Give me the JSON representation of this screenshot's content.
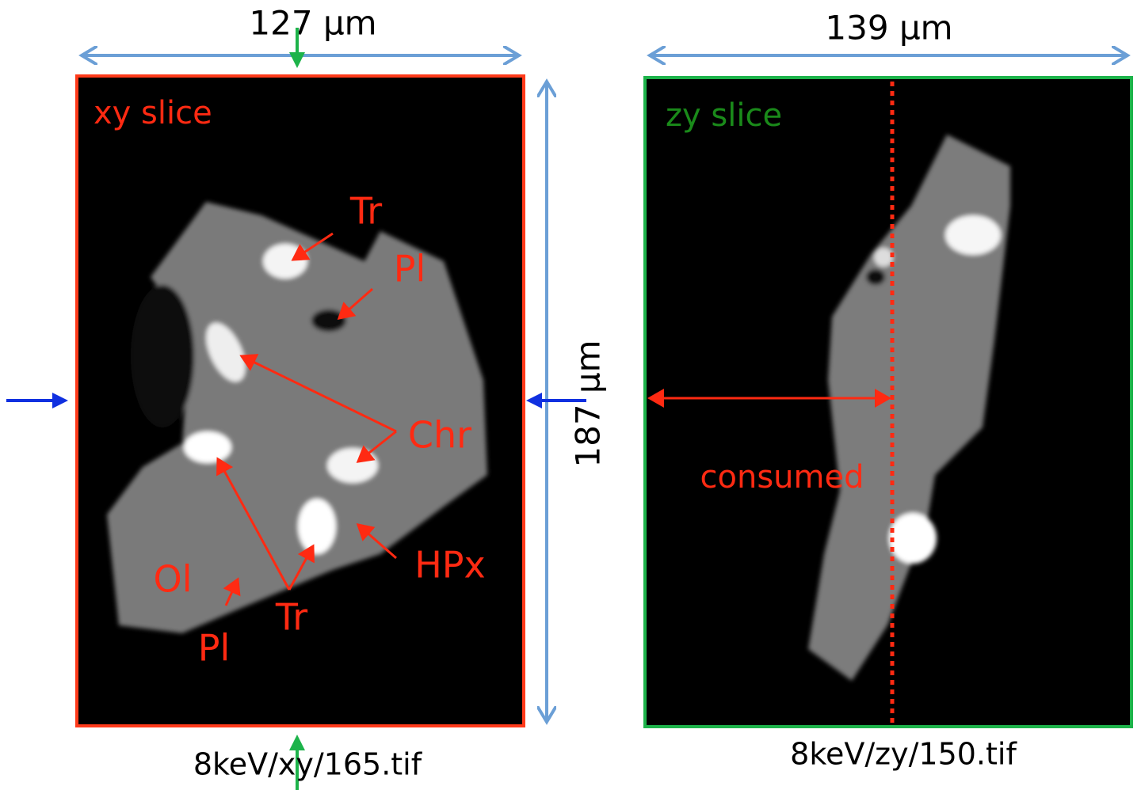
{
  "panels": [
    {
      "width_label": "127 μm",
      "height_label": "187 μm",
      "slice_label": "xy slice",
      "annotations": [
        "Tr",
        "Pl",
        "Chr",
        "Ol",
        "Pl",
        "Tr",
        "HPx"
      ],
      "file": "8keV/xy/165.tif"
    },
    {
      "width_label": "139 μm",
      "slice_label": "zy slice",
      "annotations": [
        "consumed"
      ],
      "file": "8keV/zy/150.tif"
    }
  ]
}
